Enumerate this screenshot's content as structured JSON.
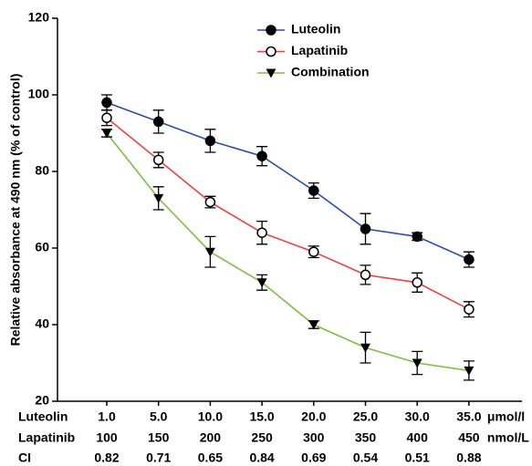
{
  "chart_data": {
    "type": "line",
    "y_label": "Relative absorbance at 490 nm (% of control)",
    "category_name": "Luteolin",
    "category_unit": "μmol/l",
    "categories": [
      "1.0",
      "5.0",
      "10.0",
      "15.0",
      "20.0",
      "25.0",
      "30.0",
      "35.0"
    ],
    "category_rows": [
      {
        "name": "Lapatinib",
        "labels": [
          100,
          150,
          200,
          250,
          300,
          350,
          400,
          450
        ],
        "unit": "nmol/L"
      },
      {
        "name": "CI",
        "labels": [
          0.82,
          0.71,
          0.65,
          0.84,
          0.69,
          0.54,
          0.51,
          0.88
        ]
      }
    ],
    "series": [
      {
        "name": "Luteolin",
        "color": "#2b4ea6",
        "marker": "filled-circle",
        "values": [
          98,
          93,
          88,
          84,
          75,
          65,
          63,
          57
        ],
        "errors": [
          2,
          3,
          3,
          2.5,
          2,
          4,
          1,
          2
        ]
      },
      {
        "name": "Lapatinib",
        "color": "#e8433f",
        "marker": "open-circle",
        "values": [
          94,
          83,
          72,
          64,
          59,
          53,
          51,
          44
        ],
        "errors": [
          2,
          2,
          1.5,
          3,
          1.5,
          2.5,
          2.5,
          2
        ]
      },
      {
        "name": "Combination",
        "color": "#7cbf45",
        "marker": "triangle-down",
        "values": [
          90,
          73,
          59,
          51,
          40,
          34,
          30,
          28
        ],
        "errors": [
          1,
          3,
          4,
          2,
          1,
          4,
          3,
          2.5
        ]
      }
    ],
    "ylim": [
      20,
      120
    ],
    "yticks": [
      20,
      40,
      60,
      80,
      100,
      120
    ],
    "grid": false,
    "legend": "top"
  }
}
